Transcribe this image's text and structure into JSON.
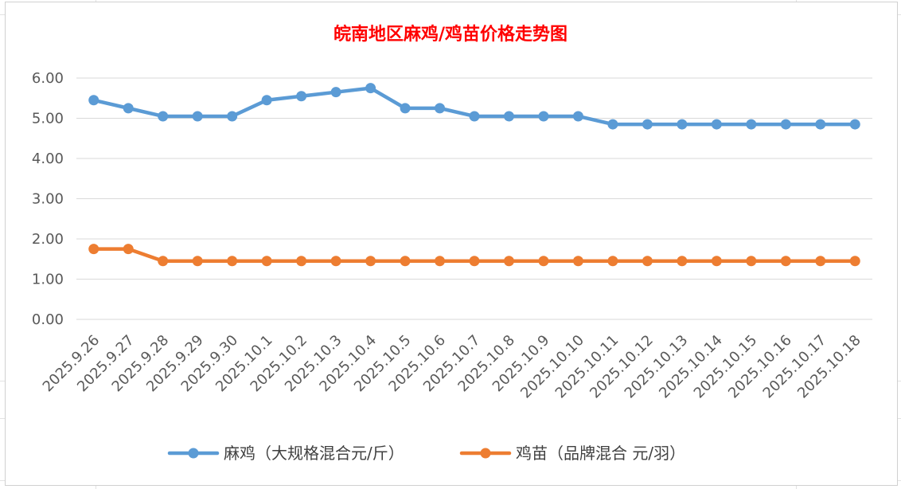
{
  "chart_data": {
    "type": "line",
    "title": "皖南地区麻鸡/鸡苗价格走势图",
    "xlabel": "",
    "ylabel": "",
    "ylim": [
      0,
      6
    ],
    "yticks": [
      "0.00",
      "1.00",
      "2.00",
      "3.00",
      "4.00",
      "5.00",
      "6.00"
    ],
    "grid": true,
    "legend_position": "bottom",
    "categories": [
      "2025.9.26",
      "2025.9.27",
      "2025.9.28",
      "2025.9.29",
      "2025.9.30",
      "2025.10.1",
      "2025.10.2",
      "2025.10.3",
      "2025.10.4",
      "2025.10.5",
      "2025.10.6",
      "2025.10.7",
      "2025.10.8",
      "2025.10.9",
      "2025.10.10",
      "2025.10.11",
      "2025.10.12",
      "2025.10.13",
      "2025.10.14",
      "2025.10.15",
      "2025.10.16",
      "2025.10.17",
      "2025.10.18"
    ],
    "series": [
      {
        "name": "麻鸡（大规格混合元/斤）",
        "color": "#5b9bd5",
        "values": [
          5.45,
          5.25,
          5.05,
          5.05,
          5.05,
          5.45,
          5.55,
          5.65,
          5.75,
          5.25,
          5.25,
          5.05,
          5.05,
          5.05,
          5.05,
          4.85,
          4.85,
          4.85,
          4.85,
          4.85,
          4.85,
          4.85,
          4.85
        ]
      },
      {
        "name": "鸡苗（品牌混合 元/羽）",
        "color": "#ed7d31",
        "values": [
          1.75,
          1.75,
          1.45,
          1.45,
          1.45,
          1.45,
          1.45,
          1.45,
          1.45,
          1.45,
          1.45,
          1.45,
          1.45,
          1.45,
          1.45,
          1.45,
          1.45,
          1.45,
          1.45,
          1.45,
          1.45,
          1.45,
          1.45
        ]
      }
    ]
  }
}
